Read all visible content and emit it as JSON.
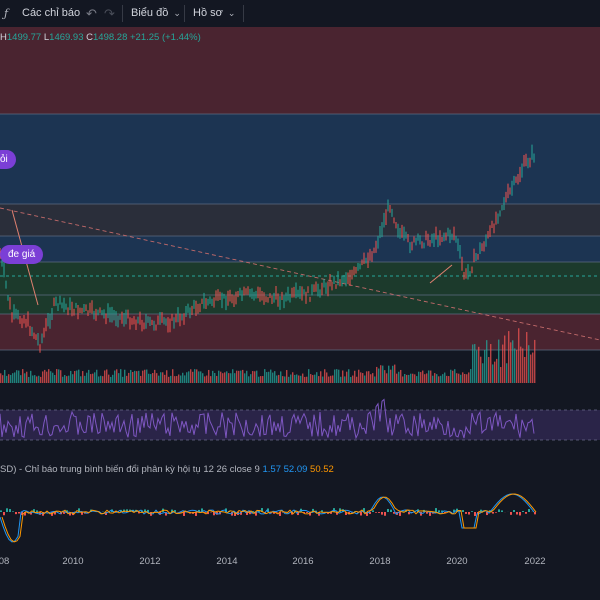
{
  "toolbar": {
    "indicators_label": "Các chỉ báo",
    "chart_label": "Biểu đồ",
    "template_label": "Hồ sơ"
  },
  "ohlc": {
    "high_label": "H",
    "high": "1499.77",
    "low_label": "L",
    "low": "1469.93",
    "close_label": "C",
    "close": "1498.28",
    "change": "+21.25 (+1.44%)"
  },
  "annotations": {
    "bubble_top": "ỏi",
    "bubble_mid": "đe giá"
  },
  "macd": {
    "legend_text": "SD) - Chỉ báo trung bình biến đổi phân kỳ hội tụ 12 26 close 9",
    "val1": "1.57",
    "val2": "52.09",
    "val3": "50.52"
  },
  "time_axis": {
    "labels": [
      "08",
      "2010",
      "2012",
      "2014",
      "2016",
      "2018",
      "2020",
      "2022"
    ]
  },
  "colors": {
    "up": "#26a69a",
    "down": "#ef5350",
    "rsi": "#7e57c2",
    "macd_line": "#2196f3",
    "signal_line": "#ff9800",
    "bubble": "#7b3fd6"
  }
}
